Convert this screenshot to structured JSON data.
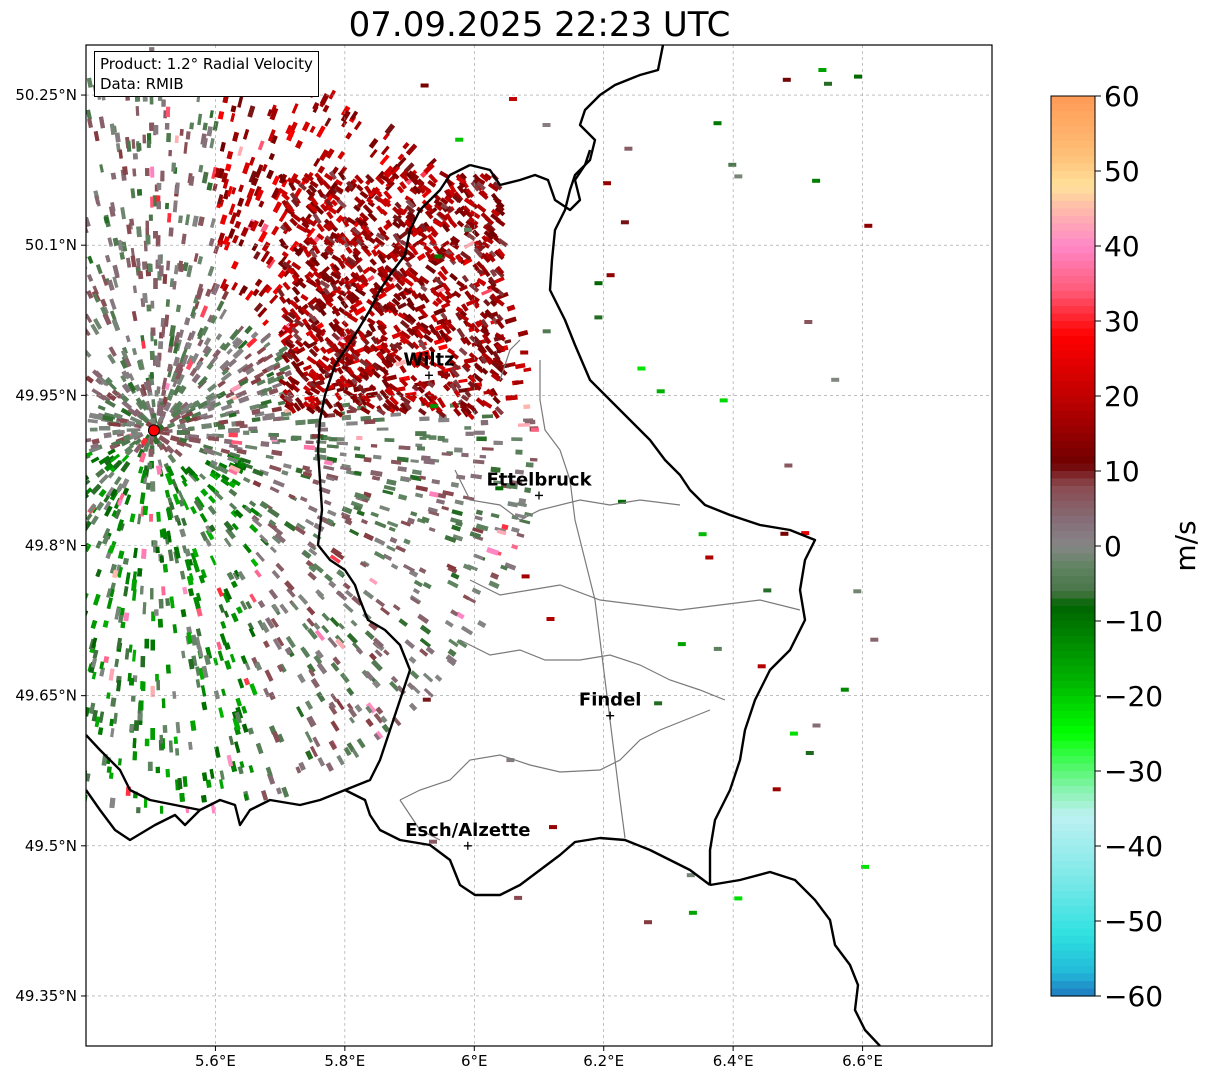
{
  "title": "07.09.2025 22:23 UTC",
  "info": {
    "product": "Product: 1.2° Radial Velocity",
    "data": "Data: RMIB"
  },
  "axes": {
    "x_ticks": [
      "5.6°E",
      "5.8°E",
      "6°E",
      "6.2°E",
      "6.4°E",
      "6.6°E"
    ],
    "y_ticks": [
      "50.25°N",
      "50.1°N",
      "49.95°N",
      "49.8°N",
      "49.65°N",
      "49.5°N",
      "49.35°N"
    ],
    "lon_range": [
      5.4,
      6.8
    ],
    "lat_range": [
      49.3,
      50.3
    ]
  },
  "places": [
    {
      "name": "Wiltz",
      "lon": 5.93,
      "lat": 49.97
    },
    {
      "name": "Ettelbruck",
      "lon": 6.1,
      "lat": 49.85
    },
    {
      "name": "Findel",
      "lon": 6.21,
      "lat": 49.63
    },
    {
      "name": "Esch/Alzette",
      "lon": 5.99,
      "lat": 49.5
    }
  ],
  "radar_site": {
    "name": "radar-site",
    "lon": 5.505,
    "lat": 49.915
  },
  "colorbar": {
    "label": "m/s",
    "ticks": [
      "60",
      "50",
      "40",
      "30",
      "20",
      "10",
      "0",
      "−10",
      "−20",
      "−30",
      "−40",
      "−50",
      "−60"
    ],
    "range": [
      -60,
      60
    ],
    "stops": [
      {
        "v": 60,
        "c": "#ff9a55"
      },
      {
        "v": 52,
        "c": "#ffc078"
      },
      {
        "v": 48,
        "c": "#ffe19a"
      },
      {
        "v": 44,
        "c": "#ffb0b0"
      },
      {
        "v": 40,
        "c": "#ff88c8"
      },
      {
        "v": 34,
        "c": "#ff5a78"
      },
      {
        "v": 28,
        "c": "#ff0000"
      },
      {
        "v": 20,
        "c": "#c20000"
      },
      {
        "v": 11,
        "c": "#700000"
      },
      {
        "v": 8,
        "c": "#8a4a50"
      },
      {
        "v": 3,
        "c": "#86707a"
      },
      {
        "v": 0,
        "c": "#868686"
      },
      {
        "v": -3,
        "c": "#5e8460"
      },
      {
        "v": -6,
        "c": "#4a7448"
      },
      {
        "v": -8,
        "c": "#006400"
      },
      {
        "v": -18,
        "c": "#00b400"
      },
      {
        "v": -25,
        "c": "#00ff00"
      },
      {
        "v": -32,
        "c": "#7ef4a4"
      },
      {
        "v": -36,
        "c": "#bdf0f2"
      },
      {
        "v": -44,
        "c": "#80e8e8"
      },
      {
        "v": -52,
        "c": "#2ee0e0"
      },
      {
        "v": -57,
        "c": "#22b8d8"
      },
      {
        "v": -60,
        "c": "#1f78c0"
      }
    ]
  }
}
